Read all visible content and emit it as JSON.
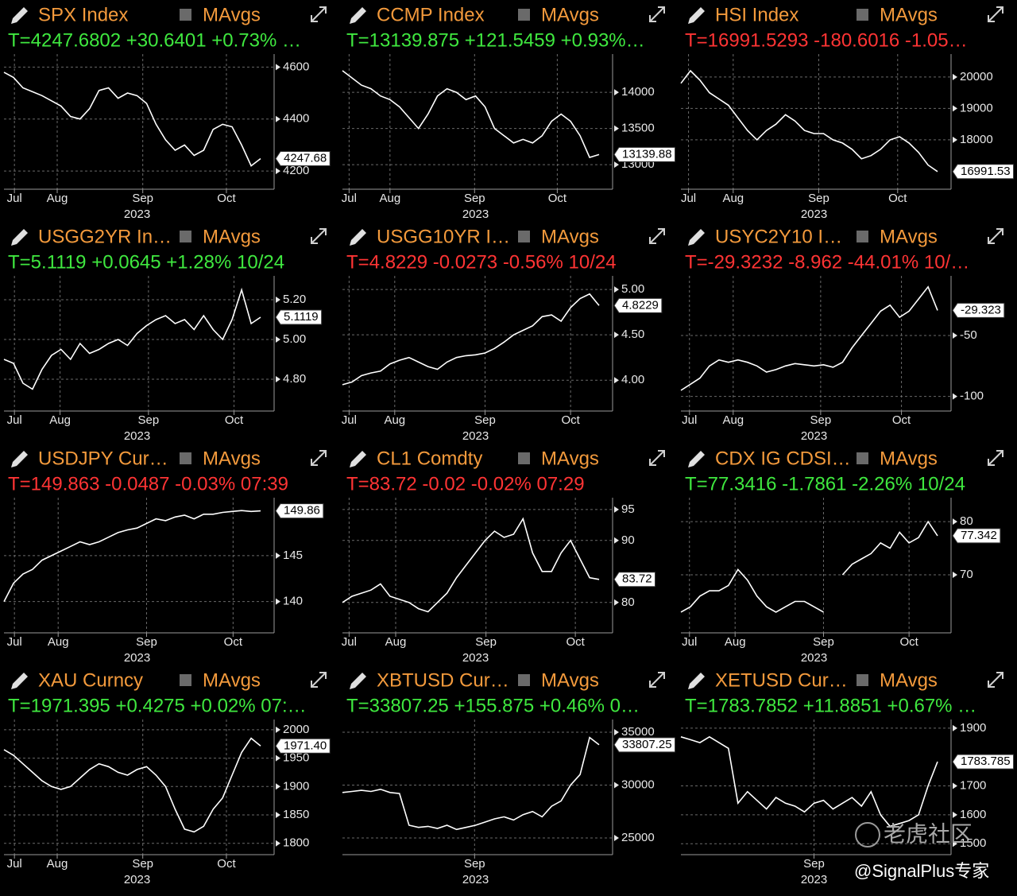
{
  "chart_data": [
    {
      "type": "line",
      "title": "SPX Index",
      "ma_label": "MAvgs",
      "status": "T=4247.6802 +30.6401 +0.73% …",
      "status_color": "#3fe83f",
      "color": "#ffffff",
      "values": [
        4580,
        4560,
        4520,
        4505,
        4490,
        4470,
        4450,
        4410,
        4400,
        4440,
        4510,
        4520,
        4480,
        4500,
        4490,
        4460,
        4380,
        4320,
        4280,
        4300,
        4260,
        4280,
        4360,
        4380,
        4370,
        4300,
        4220,
        4247.68
      ],
      "ylim": [
        4130,
        4650
      ],
      "yticks": [
        4200,
        4400,
        4600
      ],
      "xlim": [
        0,
        28
      ],
      "xticks": [
        {
          "value": 1.1,
          "label": "Jul"
        },
        {
          "value": 5.6,
          "label": "Aug"
        },
        {
          "value": 14.6,
          "label": "Sep"
        },
        {
          "value": 23.4,
          "label": "Oct"
        }
      ],
      "xlabel": "2023",
      "last": {
        "value": 4247.68,
        "label": "4247.68"
      },
      "grid": true
    },
    {
      "type": "line",
      "title": "CCMP Index",
      "ma_label": "MAvgs",
      "status": "T=13139.875 +121.5459 +0.93%…",
      "status_color": "#3fe83f",
      "color": "#ffffff",
      "values": [
        14300,
        14200,
        14100,
        14050,
        13950,
        13900,
        13800,
        13650,
        13500,
        13700,
        13950,
        14050,
        14000,
        13900,
        13950,
        13800,
        13500,
        13400,
        13300,
        13350,
        13300,
        13400,
        13600,
        13700,
        13600,
        13400,
        13100,
        13139.88
      ],
      "ylim": [
        12660,
        14530
      ],
      "yticks": [
        13000,
        13500,
        14000
      ],
      "xlim": [
        0,
        28
      ],
      "xticks": [
        {
          "value": 0.7,
          "label": "Jul"
        },
        {
          "value": 5.0,
          "label": "Aug"
        },
        {
          "value": 13.9,
          "label": "Sep"
        },
        {
          "value": 22.6,
          "label": "Oct"
        }
      ],
      "xlabel": "2023",
      "last": {
        "value": 13139.88,
        "label": "13139.88"
      },
      "grid": true
    },
    {
      "type": "line",
      "title": "HSI Index",
      "ma_label": "MAvgs",
      "status": "T=16991.5293 -180.6016 -1.05…",
      "status_color": "#ff3434",
      "color": "#ffffff",
      "values": [
        19800,
        20200,
        19900,
        19500,
        19300,
        19100,
        18700,
        18300,
        18000,
        18300,
        18500,
        18800,
        18600,
        18300,
        18200,
        18200,
        18000,
        17900,
        17700,
        17400,
        17500,
        17700,
        18000,
        18100,
        17900,
        17600,
        17200,
        16991.53
      ],
      "ylim": [
        16430,
        20730
      ],
      "yticks": [
        18000,
        19000,
        20000
      ],
      "xlim": [
        0,
        28
      ],
      "xticks": [
        {
          "value": 0.8,
          "label": "Jul"
        },
        {
          "value": 5.5,
          "label": "Aug"
        },
        {
          "value": 14.5,
          "label": "Sep"
        },
        {
          "value": 22.8,
          "label": "Oct"
        }
      ],
      "xlabel": "2023",
      "last": {
        "value": 16991.53,
        "label": "16991.53"
      },
      "grid": true
    },
    {
      "type": "line",
      "title": "USGG2YR In…",
      "ma_label": "MAvgs",
      "status": "T=5.1119 +0.0645 +1.28% 10/24",
      "status_color": "#3fe83f",
      "color": "#ffffff",
      "values": [
        4.9,
        4.88,
        4.78,
        4.75,
        4.85,
        4.92,
        4.95,
        4.9,
        4.98,
        4.93,
        4.95,
        4.98,
        5.0,
        4.97,
        5.03,
        5.07,
        5.1,
        5.12,
        5.08,
        5.1,
        5.05,
        5.12,
        5.05,
        5.0,
        5.1,
        5.25,
        5.08,
        5.1119
      ],
      "ylim": [
        4.64,
        5.32
      ],
      "yticks": [
        {
          "value": 4.8,
          "label": "4.80"
        },
        {
          "value": 5,
          "label": "5.00"
        },
        {
          "value": 5.2,
          "label": "5.20"
        }
      ],
      "xlim": [
        0,
        28
      ],
      "xticks": [
        {
          "value": 1.1,
          "label": "Jul"
        },
        {
          "value": 5.9,
          "label": "Aug"
        },
        {
          "value": 15.2,
          "label": "Sep"
        },
        {
          "value": 24.2,
          "label": "Oct"
        }
      ],
      "xlabel": "2023",
      "last": {
        "value": 5.1119,
        "label": "5.1119"
      },
      "grid": true
    },
    {
      "type": "line",
      "title": "USGG10YR I…",
      "ma_label": "MAvgs",
      "status": "T=4.8229 -0.0273 -0.56% 10/24",
      "status_color": "#ff3434",
      "color": "#ffffff",
      "values": [
        3.95,
        3.98,
        4.05,
        4.08,
        4.1,
        4.18,
        4.22,
        4.25,
        4.2,
        4.15,
        4.12,
        4.2,
        4.25,
        4.27,
        4.28,
        4.3,
        4.35,
        4.42,
        4.5,
        4.55,
        4.6,
        4.7,
        4.72,
        4.65,
        4.8,
        4.9,
        4.95,
        4.8229
      ],
      "ylim": [
        3.66,
        5.15
      ],
      "yticks": [
        {
          "value": 4,
          "label": "4.00"
        },
        {
          "value": 4.5,
          "label": "4.50"
        },
        {
          "value": 5,
          "label": "5.00"
        }
      ],
      "xlim": [
        0,
        28
      ],
      "xticks": [
        {
          "value": 0.7,
          "label": "Jul"
        },
        {
          "value": 5.5,
          "label": "Aug"
        },
        {
          "value": 15.0,
          "label": "Sep"
        },
        {
          "value": 24.0,
          "label": "Oct"
        }
      ],
      "xlabel": "2023",
      "last": {
        "value": 4.8229,
        "label": "4.8229"
      },
      "grid": true
    },
    {
      "type": "line",
      "title": "USYC2Y10 I…",
      "ma_label": "MAvgs",
      "status": "T=-29.3232 -8.962 -44.01% 10/…",
      "status_color": "#ff3434",
      "color": "#ffffff",
      "values": [
        -95,
        -90,
        -85,
        -75,
        -70,
        -72,
        -70,
        -72,
        -75,
        -80,
        -78,
        -75,
        -73,
        -74,
        -75,
        -74,
        -76,
        -72,
        -60,
        -50,
        -40,
        -30,
        -25,
        -35,
        -30,
        -20,
        -10,
        -29.323
      ],
      "ylim": [
        -112,
        -1
      ],
      "yticks": [
        -100,
        -50
      ],
      "xlim": [
        0,
        28
      ],
      "xticks": [
        {
          "value": 0.9,
          "label": "Jul"
        },
        {
          "value": 5.5,
          "label": "Aug"
        },
        {
          "value": 14.7,
          "label": "Sep"
        },
        {
          "value": 23.2,
          "label": "Oct"
        }
      ],
      "xlabel": "2023",
      "last": {
        "value": -29.323,
        "label": "-29.323"
      },
      "grid": true
    },
    {
      "type": "line",
      "title": "USDJPY Cur…",
      "ma_label": "MAvgs",
      "status": "T=149.863 -0.0487 -0.03% 07:39",
      "status_color": "#ff3434",
      "color": "#ffffff",
      "values": [
        140,
        142,
        143,
        143.5,
        144.5,
        145,
        145.5,
        146,
        146.5,
        146.2,
        146.5,
        147,
        147.5,
        147.8,
        148,
        148.5,
        149,
        148.8,
        149.2,
        149.4,
        149,
        149.5,
        149.5,
        149.7,
        149.8,
        149.9,
        149.8,
        149.863
      ],
      "ylim": [
        136.6,
        151.3
      ],
      "yticks": [
        140,
        145
      ],
      "xlim": [
        0,
        28
      ],
      "xticks": [
        {
          "value": 1.1,
          "label": "Jul"
        },
        {
          "value": 5.7,
          "label": "Aug"
        },
        {
          "value": 15.0,
          "label": "Sep"
        },
        {
          "value": 24.1,
          "label": "Oct"
        }
      ],
      "xlabel": "2023",
      "last": {
        "value": 149.86,
        "label": "149.86"
      },
      "grid": true
    },
    {
      "type": "line",
      "title": "CL1 Comdty",
      "ma_label": "MAvgs",
      "status": "T=83.72 -0.02 -0.02% 07:29",
      "status_color": "#ff3434",
      "color": "#ffffff",
      "values": [
        80,
        81,
        81.5,
        82,
        83,
        81,
        80.5,
        80,
        79,
        78.5,
        80,
        81.5,
        84,
        86,
        88,
        90,
        91.5,
        90.5,
        91,
        93.5,
        88,
        85,
        85,
        88,
        90,
        87,
        84,
        83.72
      ],
      "ylim": [
        75.1,
        96.9
      ],
      "yticks": [
        80,
        90,
        95
      ],
      "xlim": [
        0,
        28
      ],
      "xticks": [
        {
          "value": 0.7,
          "label": "Jul"
        },
        {
          "value": 5.6,
          "label": "Aug"
        },
        {
          "value": 15.1,
          "label": "Sep"
        },
        {
          "value": 24.5,
          "label": "Oct"
        }
      ],
      "xlabel": "2023",
      "last": {
        "value": 83.72,
        "label": "83.72"
      },
      "grid": true
    },
    {
      "type": "line",
      "title": "CDX IG CDSI…",
      "ma_label": "MAvgs",
      "status": "T=77.3416 -1.7861 -2.26% 10/24",
      "status_color": "#3fe83f",
      "color": "#ffffff",
      "values": [
        63,
        64,
        66,
        67,
        67,
        68,
        71,
        69,
        66,
        64,
        63,
        64,
        65,
        65,
        64,
        63,
        null,
        70,
        72,
        73,
        74,
        76,
        75,
        78,
        76,
        77,
        80,
        77.342
      ],
      "ylim": [
        59.1,
        84.5
      ],
      "yticks": [
        70,
        80
      ],
      "xlim": [
        0,
        28
      ],
      "xticks": [
        {
          "value": 0.9,
          "label": "Jul"
        },
        {
          "value": 5.7,
          "label": "Aug"
        },
        {
          "value": 15.0,
          "label": "Sep"
        },
        {
          "value": 24.0,
          "label": "Oct"
        }
      ],
      "xlabel": "2023",
      "last": {
        "value": 77.342,
        "label": "77.342"
      },
      "grid": true
    },
    {
      "type": "line",
      "title": "XAU Curncy",
      "ma_label": "MAvgs",
      "status": "T=1971.395 +0.4275 +0.02% 07:…",
      "status_color": "#3fe83f",
      "color": "#ffffff",
      "values": [
        1965,
        1955,
        1940,
        1925,
        1910,
        1900,
        1895,
        1900,
        1915,
        1930,
        1940,
        1935,
        1925,
        1920,
        1930,
        1935,
        1920,
        1900,
        1860,
        1825,
        1820,
        1830,
        1860,
        1880,
        1920,
        1960,
        1985,
        1971.4
      ],
      "ylim": [
        1780,
        2018
      ],
      "yticks": [
        1800,
        1850,
        1900,
        1950,
        2000
      ],
      "xlim": [
        0,
        28
      ],
      "xticks": [
        {
          "value": 1.1,
          "label": "Jul"
        },
        {
          "value": 5.6,
          "label": "Aug"
        },
        {
          "value": 14.6,
          "label": "Sep"
        },
        {
          "value": 23.4,
          "label": "Oct"
        }
      ],
      "xlabel": "2023",
      "last": {
        "value": 1971.4,
        "label": "1971.40"
      },
      "grid": true
    },
    {
      "type": "line",
      "title": "XBTUSD Cur…",
      "ma_label": "MAvgs",
      "status": "T=33807.25 +155.875 +0.46% 0…",
      "status_color": "#3fe83f",
      "color": "#ffffff",
      "values": [
        29300,
        29400,
        29500,
        29400,
        29600,
        29300,
        29200,
        26200,
        26000,
        26100,
        25900,
        26200,
        25800,
        26000,
        26200,
        26500,
        26800,
        27000,
        26700,
        27200,
        27500,
        27000,
        28000,
        28500,
        30000,
        31000,
        34500,
        33807.25
      ],
      "ylim": [
        23420,
        36200
      ],
      "yticks": [
        25000,
        30000,
        35000
      ],
      "xlim": [
        0,
        28
      ],
      "xticks": [
        {
          "value": 13.9,
          "label": "Sep"
        }
      ],
      "xlabel": "2023",
      "last": {
        "value": 33807.25,
        "label": "33807.25"
      },
      "grid": true
    },
    {
      "type": "line",
      "title": "XETUSD Cur…",
      "ma_label": "MAvgs",
      "status": "T=1783.7852 +11.8851 +0.67% …",
      "status_color": "#3fe83f",
      "color": "#ffffff",
      "values": [
        1870,
        1860,
        1850,
        1870,
        1850,
        1830,
        1640,
        1680,
        1650,
        1620,
        1660,
        1640,
        1630,
        1610,
        1640,
        1650,
        1620,
        1640,
        1660,
        1630,
        1680,
        1600,
        1560,
        1570,
        1580,
        1600,
        1700,
        1783.785
      ],
      "ylim": [
        1462,
        1930
      ],
      "yticks": [
        1500,
        1600,
        1700,
        1900
      ],
      "xlim": [
        0,
        28
      ],
      "xticks": [
        {
          "value": 14.0,
          "label": "Sep"
        }
      ],
      "xlabel": "2023",
      "last": {
        "value": 1783.785,
        "label": "1783.785"
      },
      "grid": true
    }
  ],
  "watermark": {
    "brand": "老虎社区",
    "author": "@SignalPlus专家"
  }
}
